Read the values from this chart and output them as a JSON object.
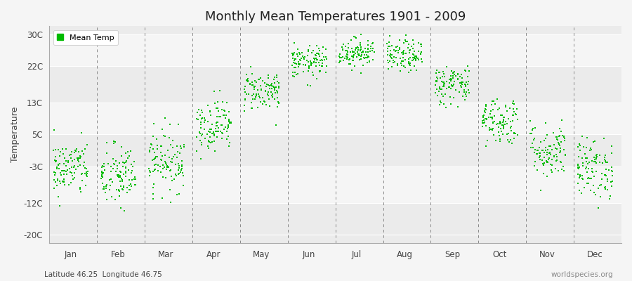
{
  "title": "Monthly Mean Temperatures 1901 - 2009",
  "ylabel": "Temperature",
  "subtitle_left": "Latitude 46.25  Longitude 46.75",
  "subtitle_right": "worldspecies.org",
  "dot_color": "#00bb00",
  "bg_color": "#f5f5f5",
  "band_colors": [
    "#ebebeb",
    "#f5f5f5"
  ],
  "legend_label": "Mean Temp",
  "ytick_labels": [
    "-20C",
    "-12C",
    "-3C",
    "5C",
    "13C",
    "22C",
    "30C"
  ],
  "ytick_values": [
    -20,
    -12,
    -3,
    5,
    13,
    22,
    30
  ],
  "ylim": [
    -22,
    32
  ],
  "months": [
    "Jan",
    "Feb",
    "Mar",
    "Apr",
    "May",
    "Jun",
    "Jul",
    "Aug",
    "Sep",
    "Oct",
    "Nov",
    "Dec"
  ],
  "month_means": [
    -3.5,
    -5.5,
    -1.5,
    7.5,
    16.0,
    23.0,
    25.5,
    24.5,
    17.5,
    8.5,
    1.0,
    -3.5
  ],
  "month_stds": [
    3.5,
    4.0,
    3.8,
    3.2,
    2.5,
    2.0,
    1.8,
    2.0,
    2.5,
    3.0,
    3.5,
    3.8
  ],
  "n_years": 109,
  "seed": 42
}
